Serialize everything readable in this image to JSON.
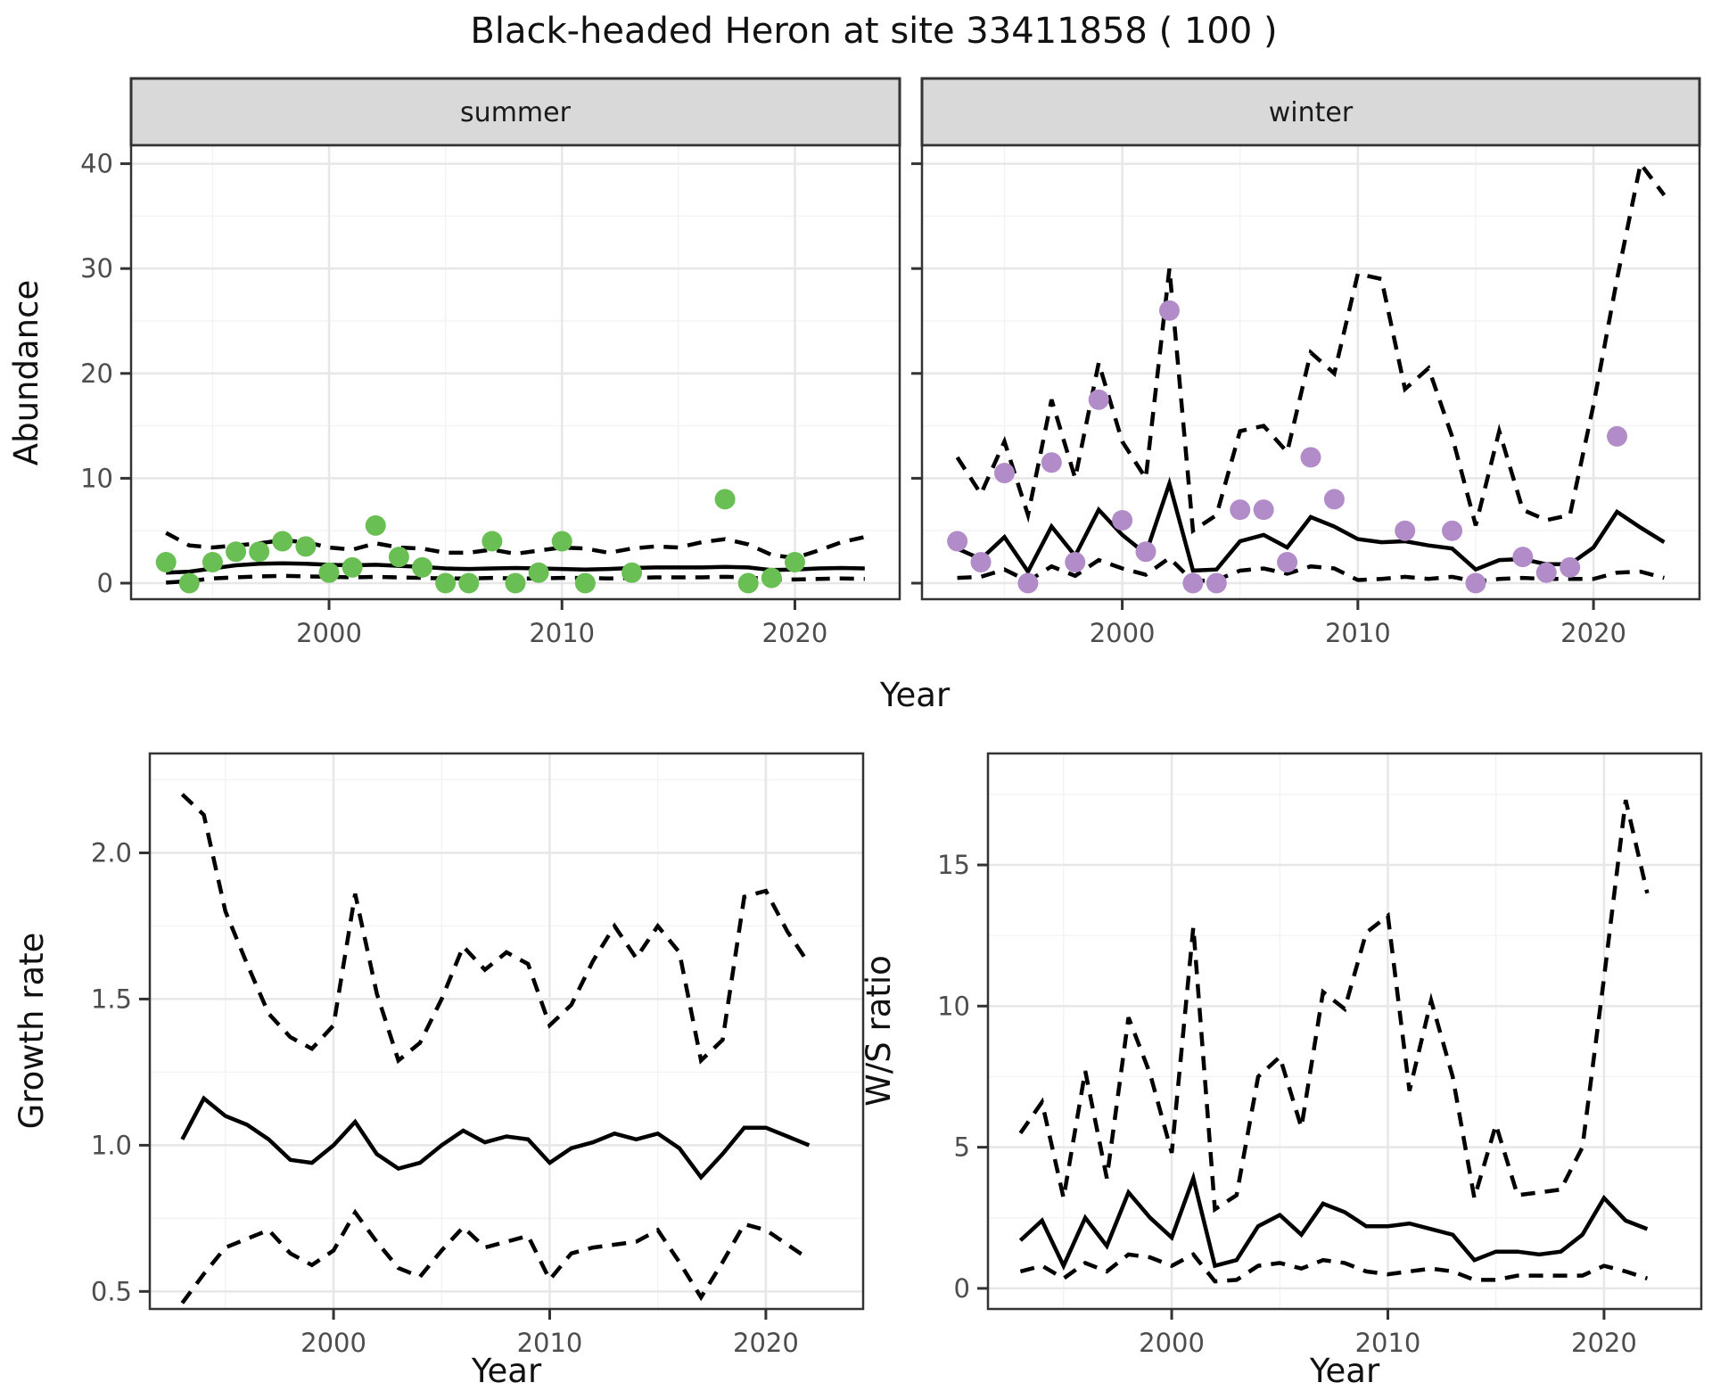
{
  "title": "Black-headed Heron at site 33411858 ( 100 )",
  "labels": {
    "y_top": "Abundance",
    "x": "Year",
    "y_bottom_left": "Growth rate",
    "y_bottom_right": "W/S ratio"
  },
  "facets": [
    {
      "label": "summer"
    },
    {
      "label": "winter"
    }
  ],
  "colors": {
    "summer_point": "#6abf54",
    "winter_point": "#b28cc8",
    "line": "#000000",
    "strip_bg": "#d9d9d9",
    "strip_border": "#333333",
    "panel_border": "#333333",
    "grid_major": "#e7e7e7",
    "grid_minor": "#f3f3f3",
    "tick_mark": "#333333"
  },
  "chart_data": [
    {
      "id": "abundance-summer",
      "type": "line+scatter",
      "facet": "summer",
      "xlabel": "Year",
      "ylabel": "Abundance",
      "xlim": [
        1991.5,
        2024.5
      ],
      "ylim": [
        -1.53,
        41.75
      ],
      "x_ticks": [
        2000,
        2010,
        2020
      ],
      "x_minor": [
        1995,
        2005,
        2015
      ],
      "y_ticks": [
        0,
        10,
        20,
        30,
        40
      ],
      "y_tick_labels": [
        "0",
        "10",
        "20",
        "30",
        "40"
      ],
      "y_minor": [
        5,
        15,
        25,
        35
      ],
      "years": [
        1993,
        1994,
        1995,
        1996,
        1997,
        1998,
        1999,
        2000,
        2001,
        2002,
        2003,
        2004,
        2005,
        2006,
        2007,
        2008,
        2009,
        2010,
        2011,
        2012,
        2013,
        2014,
        2015,
        2016,
        2017,
        2018,
        2019,
        2020,
        2021,
        2022,
        2023
      ],
      "fit": [
        1.0,
        1.1,
        1.4,
        1.7,
        1.85,
        1.9,
        1.85,
        1.75,
        1.7,
        1.75,
        1.65,
        1.55,
        1.4,
        1.35,
        1.4,
        1.45,
        1.4,
        1.35,
        1.3,
        1.35,
        1.45,
        1.5,
        1.5,
        1.5,
        1.55,
        1.5,
        1.25,
        1.3,
        1.4,
        1.45,
        1.4
      ],
      "upper": [
        4.8,
        3.6,
        3.4,
        3.6,
        3.8,
        4.1,
        3.9,
        3.4,
        3.2,
        3.8,
        3.4,
        3.3,
        2.9,
        2.9,
        3.2,
        2.8,
        3.1,
        3.4,
        3.3,
        2.9,
        3.3,
        3.5,
        3.4,
        3.9,
        4.2,
        3.7,
        2.7,
        2.4,
        3.1,
        3.9,
        4.4
      ],
      "lower": [
        0.05,
        0.2,
        0.45,
        0.55,
        0.65,
        0.7,
        0.65,
        0.6,
        0.55,
        0.6,
        0.55,
        0.5,
        0.45,
        0.45,
        0.5,
        0.45,
        0.45,
        0.5,
        0.5,
        0.45,
        0.5,
        0.55,
        0.55,
        0.55,
        0.6,
        0.55,
        0.35,
        0.35,
        0.4,
        0.45,
        0.4
      ],
      "points": [
        [
          1993,
          2
        ],
        [
          1994,
          0
        ],
        [
          1995,
          2
        ],
        [
          1996,
          3
        ],
        [
          1997,
          3
        ],
        [
          1998,
          4
        ],
        [
          1999,
          3.5
        ],
        [
          2000,
          1
        ],
        [
          2001,
          1.5
        ],
        [
          2002,
          5.5
        ],
        [
          2003,
          2.5
        ],
        [
          2004,
          1.5
        ],
        [
          2005,
          0
        ],
        [
          2006,
          0
        ],
        [
          2007,
          4
        ],
        [
          2008,
          0
        ],
        [
          2009,
          1
        ],
        [
          2010,
          4
        ],
        [
          2011,
          0
        ],
        [
          2013,
          1
        ],
        [
          2017,
          8
        ],
        [
          2018,
          0
        ],
        [
          2019,
          0.5
        ],
        [
          2020,
          2
        ]
      ],
      "point_color": "#6abf54"
    },
    {
      "id": "abundance-winter",
      "type": "line+scatter",
      "facet": "winter",
      "xlabel": "Year",
      "ylabel": "Abundance",
      "xlim": [
        1991.5,
        2024.5
      ],
      "ylim": [
        -1.53,
        41.75
      ],
      "x_ticks": [
        2000,
        2010,
        2020
      ],
      "x_minor": [
        1995,
        2005,
        2015
      ],
      "y_ticks": [
        0,
        10,
        20,
        30,
        40
      ],
      "y_tick_labels": [
        "0",
        "10",
        "20",
        "30",
        "40"
      ],
      "y_minor": [
        5,
        15,
        25,
        35
      ],
      "years": [
        1993,
        1994,
        1995,
        1996,
        1997,
        1998,
        1999,
        2000,
        2001,
        2002,
        2003,
        2004,
        2005,
        2006,
        2007,
        2008,
        2009,
        2010,
        2011,
        2012,
        2013,
        2014,
        2015,
        2016,
        2017,
        2018,
        2019,
        2020,
        2021,
        2022,
        2023
      ],
      "fit": [
        3.3,
        2.3,
        4.4,
        1.1,
        5.4,
        2.6,
        7.0,
        4.6,
        2.8,
        9.5,
        1.2,
        1.3,
        4.0,
        4.6,
        3.4,
        6.3,
        5.4,
        4.2,
        3.9,
        4.0,
        3.6,
        3.3,
        1.3,
        2.2,
        2.3,
        1.8,
        1.8,
        3.4,
        6.8,
        5.3,
        3.9
      ],
      "upper": [
        12,
        8.5,
        13.5,
        6.5,
        17.5,
        10,
        21,
        13.5,
        10,
        30,
        5,
        6.5,
        14.5,
        15,
        12.5,
        22,
        20,
        29.5,
        29,
        18.5,
        20.5,
        14,
        5.5,
        14.5,
        7,
        6,
        6.5,
        17,
        29,
        40,
        37
      ],
      "lower": [
        0.5,
        0.6,
        1.3,
        0.2,
        1.6,
        0.7,
        2.2,
        1.4,
        0.8,
        2.4,
        0.2,
        0.3,
        1.2,
        1.4,
        0.9,
        1.6,
        1.4,
        0.3,
        0.4,
        0.6,
        0.4,
        0.6,
        0.15,
        0.4,
        0.5,
        0.4,
        0.4,
        0.4,
        1.0,
        1.1,
        0.5
      ],
      "points": [
        [
          1993,
          4
        ],
        [
          1994,
          2
        ],
        [
          1995,
          10.5
        ],
        [
          1996,
          0
        ],
        [
          1997,
          11.5
        ],
        [
          1998,
          2
        ],
        [
          1999,
          17.5
        ],
        [
          2000,
          6
        ],
        [
          2001,
          3
        ],
        [
          2002,
          26
        ],
        [
          2003,
          0
        ],
        [
          2004,
          0
        ],
        [
          2005,
          7
        ],
        [
          2006,
          7
        ],
        [
          2007,
          2
        ],
        [
          2008,
          12
        ],
        [
          2009,
          8
        ],
        [
          2012,
          5
        ],
        [
          2014,
          5
        ],
        [
          2015,
          0
        ],
        [
          2017,
          2.5
        ],
        [
          2018,
          1
        ],
        [
          2019,
          1.5
        ],
        [
          2021,
          14
        ]
      ],
      "point_color": "#b28cc8"
    },
    {
      "id": "growth-rate",
      "type": "line",
      "xlabel": "Year",
      "ylabel": "Growth rate",
      "xlim": [
        1991.5,
        2024.5
      ],
      "ylim": [
        0.44,
        2.34
      ],
      "x_ticks": [
        2000,
        2010,
        2020
      ],
      "x_minor": [
        1995,
        2005,
        2015
      ],
      "y_ticks": [
        0.5,
        1.0,
        1.5,
        2.0
      ],
      "y_tick_labels": [
        "0.5",
        "1.0",
        "1.5",
        "2.0"
      ],
      "y_minor": [
        0.75,
        1.25,
        1.75,
        2.25
      ],
      "years": [
        1993,
        1994,
        1995,
        1996,
        1997,
        1998,
        1999,
        2000,
        2001,
        2002,
        2003,
        2004,
        2005,
        2006,
        2007,
        2008,
        2009,
        2010,
        2011,
        2012,
        2013,
        2014,
        2015,
        2016,
        2017,
        2018,
        2019,
        2020,
        2021,
        2022
      ],
      "fit": [
        1.02,
        1.16,
        1.1,
        1.07,
        1.02,
        0.95,
        0.94,
        1.0,
        1.08,
        0.97,
        0.92,
        0.94,
        1.0,
        1.05,
        1.01,
        1.03,
        1.02,
        0.94,
        0.99,
        1.01,
        1.04,
        1.02,
        1.04,
        0.99,
        0.89,
        0.97,
        1.06,
        1.06,
        1.03,
        1.0
      ],
      "upper": [
        2.2,
        2.13,
        1.8,
        1.62,
        1.45,
        1.37,
        1.33,
        1.41,
        1.86,
        1.52,
        1.29,
        1.35,
        1.5,
        1.68,
        1.6,
        1.66,
        1.62,
        1.41,
        1.48,
        1.63,
        1.75,
        1.64,
        1.75,
        1.66,
        1.29,
        1.36,
        1.85,
        1.87,
        1.73,
        1.62
      ],
      "lower": [
        0.46,
        0.56,
        0.65,
        0.68,
        0.71,
        0.63,
        0.59,
        0.64,
        0.77,
        0.67,
        0.58,
        0.55,
        0.64,
        0.72,
        0.65,
        0.67,
        0.69,
        0.54,
        0.63,
        0.65,
        0.66,
        0.67,
        0.71,
        0.6,
        0.48,
        0.6,
        0.73,
        0.71,
        0.66,
        0.61
      ],
      "points": []
    },
    {
      "id": "ws-ratio",
      "type": "line",
      "xlabel": "Year",
      "ylabel": "W/S ratio",
      "xlim": [
        1991.5,
        2024.5
      ],
      "ylim": [
        -0.73,
        18.95
      ],
      "x_ticks": [
        2000,
        2010,
        2020
      ],
      "x_minor": [
        1995,
        2005,
        2015
      ],
      "y_ticks": [
        0,
        5,
        10,
        15
      ],
      "y_tick_labels": [
        "0",
        "5",
        "10",
        "15"
      ],
      "y_minor": [
        2.5,
        7.5,
        12.5,
        17.5
      ],
      "years": [
        1993,
        1994,
        1995,
        1996,
        1997,
        1998,
        1999,
        2000,
        2001,
        2002,
        2003,
        2004,
        2005,
        2006,
        2007,
        2008,
        2009,
        2010,
        2011,
        2012,
        2013,
        2014,
        2015,
        2016,
        2017,
        2018,
        2019,
        2020,
        2021,
        2022
      ],
      "fit": [
        1.7,
        2.4,
        0.8,
        2.5,
        1.5,
        3.4,
        2.5,
        1.8,
        3.9,
        0.8,
        1.0,
        2.2,
        2.6,
        1.9,
        3.0,
        2.7,
        2.2,
        2.2,
        2.3,
        2.1,
        1.9,
        1.0,
        1.3,
        1.3,
        1.2,
        1.3,
        1.9,
        3.2,
        2.4,
        2.1
      ],
      "upper": [
        5.5,
        6.6,
        3.2,
        7.7,
        3.9,
        9.6,
        7.6,
        4.8,
        12.8,
        2.8,
        3.3,
        7.5,
        8.2,
        5.7,
        10.5,
        9.9,
        12.6,
        13.2,
        7.0,
        10.2,
        7.5,
        3.2,
        5.8,
        3.3,
        3.4,
        3.5,
        5.0,
        11.0,
        17.3,
        14.0
      ],
      "lower": [
        0.6,
        0.8,
        0.35,
        0.9,
        0.6,
        1.2,
        1.1,
        0.8,
        1.2,
        0.25,
        0.3,
        0.8,
        0.9,
        0.7,
        1.0,
        0.9,
        0.6,
        0.5,
        0.6,
        0.7,
        0.6,
        0.3,
        0.3,
        0.45,
        0.45,
        0.45,
        0.45,
        0.8,
        0.6,
        0.35
      ],
      "points": []
    }
  ]
}
